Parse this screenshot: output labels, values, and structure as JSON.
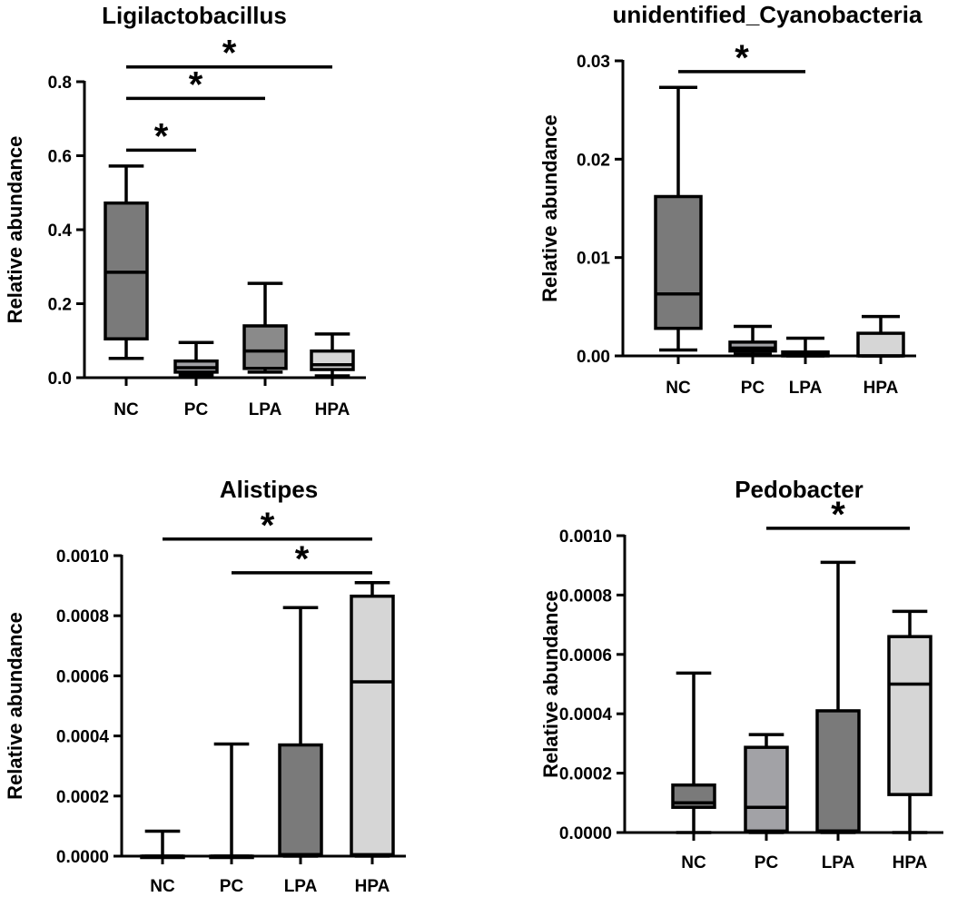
{
  "chart_data": [
    {
      "type": "box",
      "title": "Ligilactobacillus",
      "ylabel": "Relative abundance",
      "ylim": [
        0,
        0.8
      ],
      "yticks": [
        0.0,
        0.2,
        0.4,
        0.6,
        0.8
      ],
      "ytick_labels": [
        "0.0",
        "0.2",
        "0.4",
        "0.6",
        "0.8"
      ],
      "categories": [
        "NC",
        "PC",
        "LPA",
        "HPA"
      ],
      "boxes": [
        {
          "group": "NC",
          "min": 0.052,
          "q1": 0.105,
          "median": 0.285,
          "q3": 0.472,
          "max": 0.572,
          "fill": "#7a7a7a"
        },
        {
          "group": "PC",
          "min": 0.008,
          "q1": 0.015,
          "median": 0.027,
          "q3": 0.045,
          "max": 0.095,
          "fill": "#a2a2a6"
        },
        {
          "group": "LPA",
          "min": 0.015,
          "q1": 0.025,
          "median": 0.072,
          "q3": 0.14,
          "max": 0.255,
          "fill": "#8a8a8a"
        },
        {
          "group": "HPA",
          "min": 0.005,
          "q1": 0.022,
          "median": 0.035,
          "q3": 0.072,
          "max": 0.118,
          "fill": "#d6d6d6"
        }
      ],
      "significance": [
        {
          "from": "NC",
          "to": "PC",
          "y": 0.615,
          "label": "*"
        },
        {
          "from": "NC",
          "to": "LPA",
          "y": 0.755,
          "label": "*"
        },
        {
          "from": "NC",
          "to": "HPA",
          "y": 0.84,
          "label": "*"
        }
      ]
    },
    {
      "type": "box",
      "title": "unidentified_Cyanobacteria",
      "ylabel": "Relative abundance",
      "ylim": [
        0,
        0.03
      ],
      "yticks": [
        0.0,
        0.01,
        0.02,
        0.03
      ],
      "ytick_labels": [
        "0.00",
        "0.01",
        "0.02",
        "0.03"
      ],
      "categories": [
        "NC",
        "PC",
        "LPA",
        "HPA"
      ],
      "boxes": [
        {
          "group": "NC",
          "min": 0.0006,
          "q1": 0.0028,
          "median": 0.0063,
          "q3": 0.0162,
          "max": 0.0273,
          "fill": "#7a7a7a"
        },
        {
          "group": "PC",
          "min": 0.0002,
          "q1": 0.0005,
          "median": 0.0008,
          "q3": 0.0014,
          "max": 0.003,
          "fill": "#a2a2a6"
        },
        {
          "group": "LPA",
          "min": 0.0,
          "q1": 0.0,
          "median": 0.0002,
          "q3": 0.0004,
          "max": 0.0018,
          "fill": "#8a8a8a"
        },
        {
          "group": "HPA",
          "min": 0.0,
          "q1": 0.0,
          "median": 0.0,
          "q3": 0.0023,
          "max": 0.004,
          "fill": "#d6d6d6"
        }
      ],
      "significance": [
        {
          "from": "NC",
          "to": "LPA",
          "y": 0.0289,
          "label": "*"
        }
      ]
    },
    {
      "type": "box",
      "title": "Alistipes",
      "ylabel": "Relative abundance",
      "ylim": [
        0,
        0.001
      ],
      "yticks": [
        0.0,
        0.0002,
        0.0004,
        0.0006,
        0.0008,
        0.001
      ],
      "ytick_labels": [
        "0.0000",
        "0.0002",
        "0.0004",
        "0.0006",
        "0.0008",
        "0.0010"
      ],
      "categories": [
        "NC",
        "PC",
        "LPA",
        "HPA"
      ],
      "boxes": [
        {
          "group": "NC",
          "min": 0.0,
          "q1": 0.0,
          "median": 0.0,
          "q3": 0.0,
          "max": 8.3e-05,
          "fill": "#7a7a7a"
        },
        {
          "group": "PC",
          "min": 0.0,
          "q1": 0.0,
          "median": 0.0,
          "q3": 0.0,
          "max": 0.000373,
          "fill": "#a2a2a6"
        },
        {
          "group": "LPA",
          "min": 0.0,
          "q1": 5e-06,
          "median": 5e-06,
          "q3": 0.00037,
          "max": 0.000827,
          "fill": "#7a7a7a"
        },
        {
          "group": "HPA",
          "min": 0.0,
          "q1": 5e-06,
          "median": 0.00058,
          "q3": 0.000865,
          "max": 0.00091,
          "fill": "#d6d6d6"
        }
      ],
      "significance": [
        {
          "from": "NC",
          "to": "HPA",
          "y": 0.001055,
          "label": "*"
        },
        {
          "from": "PC",
          "to": "HPA",
          "y": 0.000943,
          "label": "*"
        }
      ]
    },
    {
      "type": "box",
      "title": "Pedobacter",
      "ylabel": "Relative abundance",
      "ylim": [
        0,
        0.001
      ],
      "yticks": [
        0.0,
        0.0002,
        0.0004,
        0.0006,
        0.0008,
        0.001
      ],
      "ytick_labels": [
        "0.0000",
        "0.0002",
        "0.0004",
        "0.0006",
        "0.0008",
        "0.0010"
      ],
      "categories": [
        "NC",
        "PC",
        "LPA",
        "HPA"
      ],
      "boxes": [
        {
          "group": "NC",
          "min": 0.0,
          "q1": 8.5e-05,
          "median": 0.0001,
          "q3": 0.00016,
          "max": 0.000537,
          "fill": "#7a7a7a"
        },
        {
          "group": "PC",
          "min": 0.0,
          "q1": 5e-06,
          "median": 8.5e-05,
          "q3": 0.000287,
          "max": 0.00033,
          "fill": "#a2a2a6"
        },
        {
          "group": "LPA",
          "min": 0.0,
          "q1": 5e-06,
          "median": 5e-06,
          "q3": 0.00041,
          "max": 0.00091,
          "fill": "#7a7a7a"
        },
        {
          "group": "HPA",
          "min": 0.0,
          "q1": 0.000128,
          "median": 0.0005,
          "q3": 0.00066,
          "max": 0.000745,
          "fill": "#d6d6d6"
        }
      ],
      "significance": [
        {
          "from": "PC",
          "to": "HPA",
          "y": 0.001025,
          "label": "*"
        }
      ]
    }
  ]
}
